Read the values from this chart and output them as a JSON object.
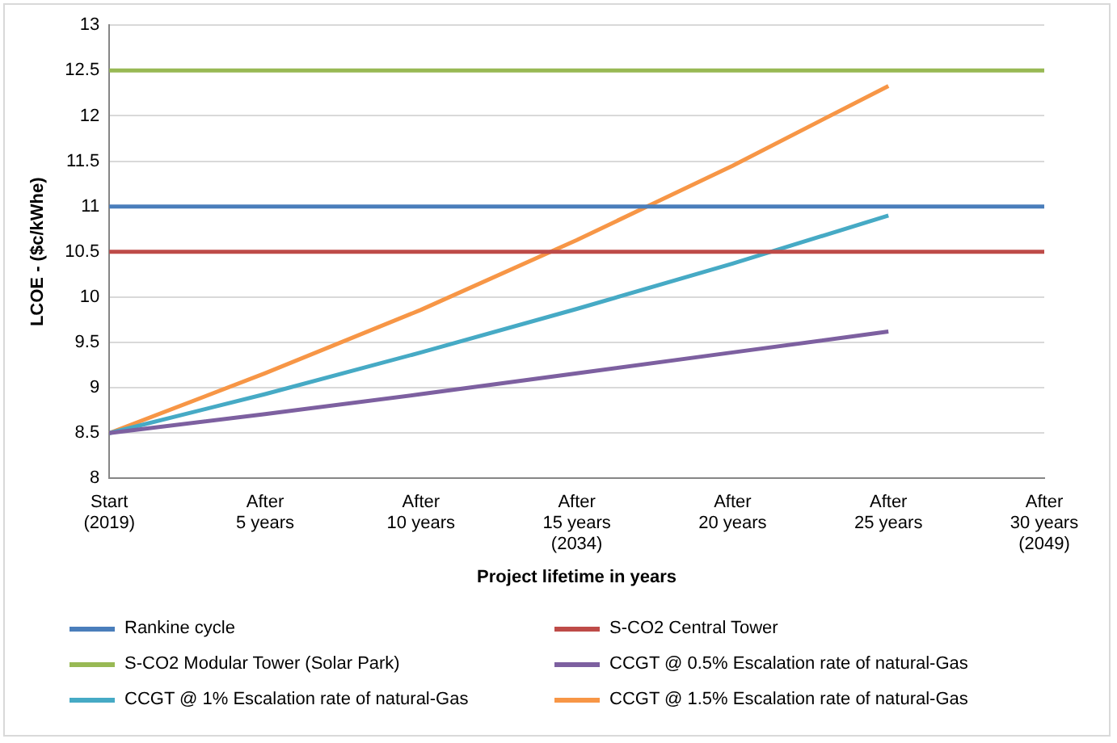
{
  "chart_data": {
    "type": "line",
    "xlabel": "Project lifetime in years",
    "ylabel": "LCOE - ($c/kWhe)",
    "categories": [
      "Start (2019)",
      "After 5 years",
      "After 10 years",
      "After 15 years (2034)",
      "After 20 years",
      "After 25 years",
      "After 30 years (2049)"
    ],
    "ylim": [
      8,
      13
    ],
    "yticks": [
      8,
      8.5,
      9,
      9.5,
      10,
      10.5,
      11,
      11.5,
      12,
      12.5,
      13
    ],
    "grid": "y",
    "legend": "bottom",
    "marker": "none",
    "line_style": "solid",
    "series": [
      {
        "name": "Rankine cycle",
        "color": "#4a7ebb",
        "values": [
          11,
          11,
          11,
          11,
          11,
          11,
          11
        ]
      },
      {
        "name": "S-CO2 Central Tower",
        "color": "#be4b48",
        "values": [
          10.5,
          10.5,
          10.5,
          10.5,
          10.5,
          10.5,
          10.5
        ]
      },
      {
        "name": "S-CO2 Modular Tower (Solar Park)",
        "color": "#98b954",
        "values": [
          12.5,
          12.5,
          12.5,
          12.5,
          12.5,
          12.5,
          12.5
        ]
      },
      {
        "name": "CCGT @ 0.5% Escalation rate of natural-Gas",
        "color": "#7d60a0",
        "values": [
          8.5,
          8.71,
          8.93,
          9.16,
          9.39,
          9.62,
          null
        ]
      },
      {
        "name": "CCGT @ 1% Escalation rate of natural-Gas",
        "color": "#46aac5",
        "values": [
          8.5,
          8.93,
          9.39,
          9.87,
          10.37,
          10.9,
          null
        ]
      },
      {
        "name": "CCGT @ 1.5% Escalation rate of natural-Gas",
        "color": "#f79646",
        "values": [
          8.5,
          9.16,
          9.86,
          10.63,
          11.45,
          12.33,
          null
        ]
      }
    ]
  }
}
